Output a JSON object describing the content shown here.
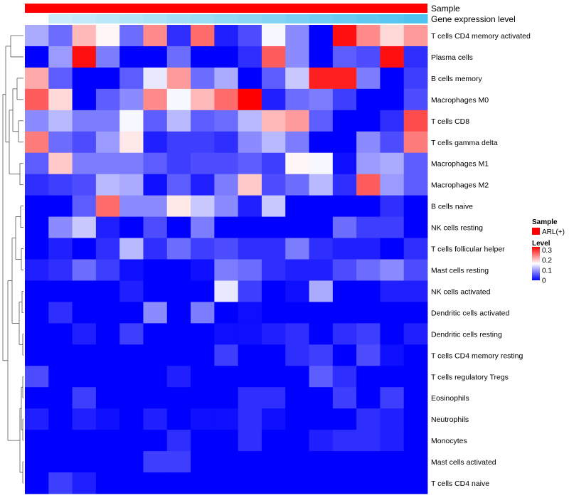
{
  "chart_data": {
    "type": "heatmap",
    "title": "",
    "annotation_tracks": [
      {
        "name": "Sample",
        "color": "#ff0000"
      },
      {
        "name": "Gene expression level",
        "color_low": "#ffffff",
        "color_high": "#4fc3f0"
      }
    ],
    "rows": [
      "T cells CD4 memory activated",
      "Plasma cells",
      "B cells memory",
      "Macrophages M0",
      "T cells CD8",
      "T cells gamma delta",
      "Macrophages M1",
      "Macrophages M2",
      "B cells naive",
      "NK cells resting",
      "T cells follicular helper",
      "Mast cells resting",
      "NK cells activated",
      "Dendritic cells activated",
      "Dendritic cells resting",
      "T cells CD4 memory resting",
      "T cells regulatory  Tregs",
      "Eosinophils",
      "Neutrophils",
      "Monocytes",
      "Mast cells activated",
      "T cells CD4 naive"
    ],
    "columns": 17,
    "values": [
      [
        0.11,
        0.07,
        0.21,
        0.17,
        0.07,
        0.24,
        0.03,
        0.26,
        0.02,
        0.05,
        0.16,
        0.09,
        0.0,
        0.32,
        0.24,
        0.19,
        0.23
      ],
      [
        0.0,
        0.1,
        0.32,
        0.08,
        0.0,
        0.0,
        0.07,
        0.0,
        0.0,
        0.03,
        0.27,
        0.09,
        0.0,
        0.06,
        0.05,
        0.32,
        0.03
      ],
      [
        0.22,
        0.06,
        0.0,
        0.0,
        0.06,
        0.15,
        0.23,
        0.07,
        0.11,
        0.0,
        0.06,
        0.13,
        0.31,
        0.31,
        0.08,
        0.0,
        0.04
      ],
      [
        0.27,
        0.19,
        0.0,
        0.06,
        0.09,
        0.24,
        0.16,
        0.21,
        0.26,
        0.33,
        0.02,
        0.07,
        0.08,
        0.04,
        0.0,
        0.0,
        0.05
      ],
      [
        0.09,
        0.12,
        0.08,
        0.08,
        0.16,
        0.06,
        0.12,
        0.06,
        0.07,
        0.12,
        0.21,
        0.23,
        0.06,
        0.0,
        0.0,
        0.03,
        0.28
      ],
      [
        0.25,
        0.07,
        0.05,
        0.1,
        0.18,
        0.02,
        0.04,
        0.04,
        0.03,
        0.09,
        0.12,
        0.08,
        0.0,
        0.0,
        0.09,
        0.05,
        0.25
      ],
      [
        0.06,
        0.2,
        0.08,
        0.08,
        0.08,
        0.06,
        0.04,
        0.05,
        0.05,
        0.06,
        0.04,
        0.17,
        0.16,
        0.01,
        0.1,
        0.11,
        0.06
      ],
      [
        0.03,
        0.04,
        0.05,
        0.12,
        0.11,
        0.01,
        0.06,
        0.02,
        0.08,
        0.2,
        0.05,
        0.07,
        0.12,
        0.03,
        0.27,
        0.1,
        0.06
      ],
      [
        0.0,
        0.0,
        0.06,
        0.26,
        0.09,
        0.09,
        0.18,
        0.13,
        0.09,
        0.02,
        0.13,
        0.0,
        0.0,
        0.0,
        0.0,
        0.03,
        0.0
      ],
      [
        0.0,
        0.09,
        0.13,
        0.02,
        0.0,
        0.05,
        0.0,
        0.08,
        0.0,
        0.0,
        0.0,
        0.0,
        0.0,
        0.07,
        0.04,
        0.04,
        0.0
      ],
      [
        0.0,
        0.02,
        0.0,
        0.03,
        0.12,
        0.03,
        0.07,
        0.04,
        0.05,
        0.03,
        0.03,
        0.08,
        0.03,
        0.02,
        0.02,
        0.0,
        0.03
      ],
      [
        0.02,
        0.03,
        0.07,
        0.04,
        0.01,
        0.0,
        0.0,
        0.01,
        0.08,
        0.07,
        0.03,
        0.02,
        0.02,
        0.05,
        0.07,
        0.09,
        0.05
      ],
      [
        0.0,
        0.0,
        0.0,
        0.0,
        0.02,
        0.0,
        0.0,
        0.0,
        0.15,
        0.04,
        0.0,
        0.01,
        0.11,
        0.0,
        0.0,
        0.02,
        0.02
      ],
      [
        0.0,
        0.03,
        0.0,
        0.0,
        0.0,
        0.09,
        0.0,
        0.08,
        0.0,
        0.01,
        0.0,
        0.0,
        0.0,
        0.0,
        0.0,
        0.0,
        0.0
      ],
      [
        0.0,
        0.0,
        0.02,
        0.0,
        0.04,
        0.0,
        0.0,
        0.0,
        0.01,
        0.01,
        0.02,
        0.03,
        0.0,
        0.03,
        0.04,
        0.0,
        0.02
      ],
      [
        0.0,
        0.0,
        0.0,
        0.0,
        0.0,
        0.0,
        0.0,
        0.0,
        0.04,
        0.0,
        0.0,
        0.03,
        0.04,
        0.0,
        0.05,
        0.01,
        0.0
      ],
      [
        0.05,
        0.0,
        0.0,
        0.0,
        0.0,
        0.0,
        0.02,
        0.0,
        0.0,
        0.0,
        0.0,
        0.0,
        0.06,
        0.03,
        0.0,
        0.0,
        0.0
      ],
      [
        0.0,
        0.0,
        0.04,
        0.0,
        0.0,
        0.0,
        0.0,
        0.0,
        0.0,
        0.03,
        0.03,
        0.0,
        0.0,
        0.04,
        0.0,
        0.04,
        0.0
      ],
      [
        0.02,
        0.0,
        0.02,
        0.01,
        0.0,
        0.02,
        0.0,
        0.01,
        0.01,
        0.03,
        0.01,
        0.0,
        0.0,
        0.0,
        0.03,
        0.02,
        0.0
      ],
      [
        0.0,
        0.0,
        0.0,
        0.0,
        0.0,
        0.0,
        0.03,
        0.0,
        0.0,
        0.03,
        0.0,
        0.0,
        0.02,
        0.03,
        0.03,
        0.02,
        0.0
      ],
      [
        0.0,
        0.0,
        0.0,
        0.0,
        0.0,
        0.04,
        0.04,
        0.0,
        0.0,
        0.0,
        0.0,
        0.0,
        0.0,
        0.0,
        0.0,
        0.0,
        0.0
      ],
      [
        0.0,
        0.04,
        0.02,
        0.0,
        0.0,
        0.0,
        0.0,
        0.0,
        0.0,
        0.0,
        0.0,
        0.0,
        0.0,
        0.0,
        0.0,
        0.0,
        0.0
      ]
    ],
    "color_scale": {
      "min": 0,
      "max": 0.33,
      "low": "#0000ff",
      "mid": "#ffffff",
      "high": "#ff0000"
    },
    "legend": {
      "position": "right",
      "sample_title": "Sample",
      "sample_entry": "ARL(+)",
      "sample_color": "#ff0000",
      "level_title": "Level",
      "level_ticks": [
        "0.3",
        "0.2",
        "0.1",
        "0"
      ]
    }
  }
}
